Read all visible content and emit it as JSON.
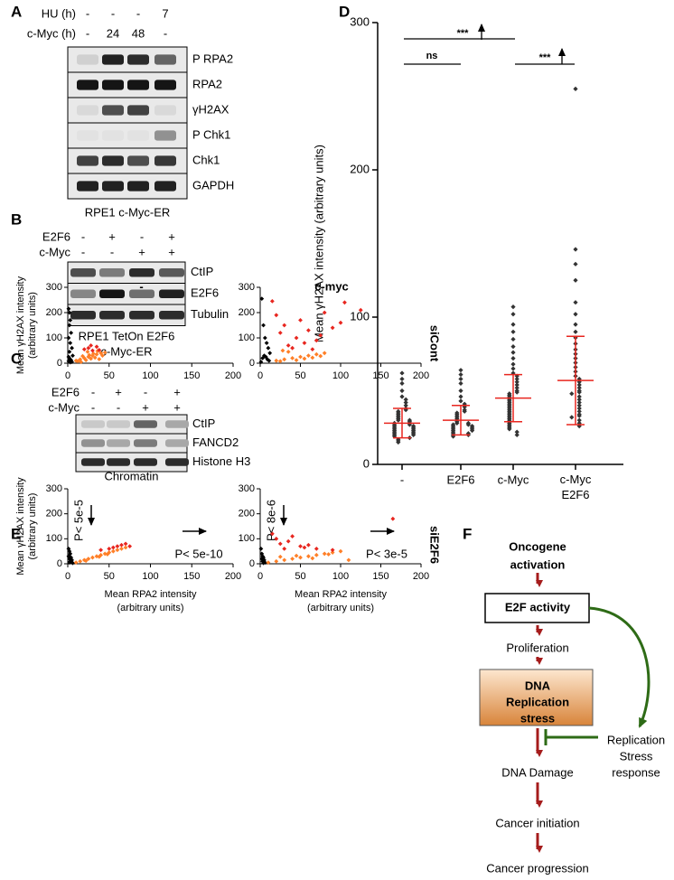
{
  "blot_a": {
    "label": "A",
    "conditions": [
      {
        "name": "HU (h)",
        "values": [
          "-",
          "-",
          "-",
          "7"
        ]
      },
      {
        "name": "c-Myc (h)",
        "values": [
          "-",
          "24",
          "48",
          "-"
        ]
      }
    ],
    "bands": [
      "P RPA2",
      "RPA2",
      "γH2AX",
      "P Chk1",
      "Chk1",
      "GAPDH"
    ],
    "caption": [
      "RPE1 c-Myc-ER"
    ]
  },
  "blot_b": {
    "label": "B",
    "conditions": [
      {
        "name": "E2F6",
        "values": [
          "-",
          "+",
          "-",
          "+"
        ]
      },
      {
        "name": "c-Myc",
        "values": [
          "-",
          "-",
          "+",
          "+"
        ]
      }
    ],
    "bands": [
      "CtIP",
      "E2F6",
      "Tubulin"
    ],
    "caption": [
      "RPE1 TetOn E2F6",
      "c-Myc-ER"
    ]
  },
  "blot_c": {
    "label": "C",
    "conditions": [
      {
        "name": "E2F6",
        "values": [
          "-",
          "+",
          "-",
          "+"
        ]
      },
      {
        "name": "c-Myc",
        "values": [
          "-",
          "-",
          "+",
          "+"
        ]
      }
    ],
    "bands": [
      "CtIP",
      "FANCD2",
      "Histone H3"
    ],
    "caption": [
      "Chromatin"
    ]
  },
  "chart_data": [
    {
      "type": "dotplot",
      "label": "D",
      "ylabel": "Mean γH2AX intensity (arbitrary units)",
      "categories": [
        "-",
        "E2F6",
        "c-Myc",
        "c-Myc E2F6"
      ],
      "values": [
        [
          62,
          58,
          55,
          50,
          46,
          44,
          42,
          40,
          38,
          37,
          36,
          35,
          34,
          33,
          32,
          31,
          30,
          30,
          29,
          28,
          28,
          27,
          27,
          26,
          26,
          25,
          25,
          24,
          24,
          23,
          23,
          22,
          22,
          21,
          21,
          20,
          20,
          19,
          18,
          17,
          16,
          15
        ],
        [
          64,
          61,
          58,
          55,
          50,
          46,
          43,
          41,
          39,
          37,
          36,
          35,
          34,
          33,
          32,
          31,
          30,
          29,
          28,
          28,
          27,
          27,
          26,
          26,
          25,
          25,
          24,
          24,
          23,
          23,
          22,
          21,
          21,
          20,
          20,
          19
        ],
        [
          107,
          102,
          95,
          90,
          85,
          80,
          76,
          72,
          68,
          65,
          62,
          60,
          58,
          56,
          54,
          52,
          50,
          49,
          48,
          47,
          46,
          45,
          44,
          43,
          42,
          41,
          40,
          39,
          38,
          37,
          36,
          35,
          34,
          33,
          32,
          31,
          30,
          29,
          28,
          27,
          26,
          25,
          24,
          22,
          20
        ],
        [
          255,
          146,
          136,
          125,
          110,
          102,
          95,
          90,
          86,
          82,
          78,
          75,
          72,
          69,
          66,
          63,
          60,
          58,
          56,
          54,
          52,
          50,
          49,
          48,
          46,
          44,
          42,
          40,
          38,
          36,
          34,
          33,
          32,
          30,
          28,
          26
        ]
      ],
      "mean": [
        28,
        30,
        45,
        57
      ],
      "sd": [
        10,
        10,
        16,
        30
      ],
      "color": "#333333",
      "stat_color": "#e8261f",
      "ylim": [
        0,
        300
      ],
      "yticks": [
        0,
        100,
        200,
        300
      ],
      "annotations": [
        "***",
        "ns",
        "***"
      ]
    },
    {
      "type": "scatter",
      "label": "E",
      "title": "-",
      "ylabel": [
        "Mean γH2AX intensity",
        "(arbitrary units)"
      ],
      "xlim": [
        0,
        200
      ],
      "xticks": [
        0,
        50,
        100,
        150,
        200
      ],
      "ylim": [
        0,
        300
      ],
      "yticks": [
        0,
        100,
        200,
        300
      ],
      "series": [
        {
          "color": "#000000",
          "x": [
            1,
            2,
            3,
            2,
            4,
            1,
            3,
            5,
            2,
            6,
            1,
            2,
            3,
            4,
            2,
            1,
            5,
            3
          ],
          "y": [
            215,
            200,
            170,
            150,
            120,
            100,
            80,
            60,
            45,
            30,
            25,
            20,
            15,
            12,
            10,
            8,
            5,
            3
          ]
        },
        {
          "color": "#ff7f27",
          "x": [
            10,
            15,
            20,
            25,
            30,
            35,
            40,
            22,
            28,
            18,
            33,
            38,
            12,
            26,
            31,
            45,
            16,
            24,
            36,
            42
          ],
          "y": [
            10,
            15,
            20,
            25,
            30,
            35,
            40,
            12,
            18,
            28,
            22,
            16,
            8,
            32,
            38,
            42,
            5,
            45,
            48,
            30
          ]
        },
        {
          "color": "#e8261f",
          "x": [
            20,
            25,
            30,
            35,
            28,
            38
          ],
          "y": [
            55,
            60,
            50,
            65,
            70,
            52
          ]
        }
      ]
    },
    {
      "type": "scatter",
      "title": "c-myc",
      "row_label": "siCont",
      "xlim": [
        0,
        200
      ],
      "xticks": [
        0,
        50,
        100,
        150,
        200
      ],
      "ylim": [
        0,
        300
      ],
      "yticks": [
        0,
        100,
        200,
        300
      ],
      "series": [
        {
          "color": "#000000",
          "x": [
            2,
            4,
            6,
            8,
            10,
            12,
            5,
            7,
            3,
            9,
            11,
            1
          ],
          "y": [
            255,
            150,
            100,
            80,
            60,
            40,
            30,
            25,
            20,
            15,
            10,
            5
          ]
        },
        {
          "color": "#ff7f27",
          "x": [
            20,
            30,
            40,
            50,
            60,
            70,
            80,
            35,
            45,
            55,
            65,
            75,
            25,
            28
          ],
          "y": [
            10,
            15,
            20,
            25,
            30,
            35,
            40,
            45,
            12,
            18,
            22,
            28,
            8,
            50
          ]
        },
        {
          "color": "#e8261f",
          "x": [
            15,
            20,
            25,
            30,
            40,
            45,
            50,
            55,
            60,
            70,
            75,
            80,
            90,
            100,
            105,
            125,
            35,
            65
          ],
          "y": [
            245,
            190,
            120,
            150,
            60,
            100,
            170,
            80,
            130,
            90,
            110,
            200,
            140,
            160,
            240,
            210,
            70,
            55
          ]
        }
      ]
    },
    {
      "type": "scatter",
      "ylabel": [
        "Mean γH2AX intensity",
        "(arbitrary units)"
      ],
      "xlabel": [
        "Mean RPA2 intensity",
        "(arbitrary units)"
      ],
      "xlim": [
        0,
        200
      ],
      "xticks": [
        0,
        50,
        100,
        150,
        200
      ],
      "ylim": [
        0,
        300
      ],
      "yticks": [
        0,
        100,
        200,
        300
      ],
      "annotations": [
        "P< 5e-5",
        "P< 5e-10"
      ],
      "series": [
        {
          "color": "#000000",
          "x": [
            1,
            2,
            3,
            1,
            4,
            2,
            5,
            3,
            2,
            6
          ],
          "y": [
            60,
            50,
            40,
            30,
            25,
            20,
            15,
            10,
            5,
            3
          ]
        },
        {
          "color": "#ff7f27",
          "x": [
            10,
            15,
            20,
            25,
            30,
            35,
            40,
            45,
            50,
            55,
            60,
            65,
            70,
            22,
            38,
            48
          ],
          "y": [
            5,
            10,
            15,
            20,
            25,
            30,
            35,
            40,
            45,
            50,
            55,
            60,
            65,
            12,
            28,
            38
          ]
        },
        {
          "color": "#e8261f",
          "x": [
            40,
            50,
            55,
            60,
            65,
            70,
            75
          ],
          "y": [
            55,
            60,
            65,
            70,
            75,
            80,
            70
          ]
        }
      ]
    },
    {
      "type": "scatter",
      "row_label": "siE2F6",
      "xlabel": [
        "Mean RPA2 intensity",
        "(arbitrary units)"
      ],
      "xlim": [
        0,
        200
      ],
      "xticks": [
        0,
        50,
        100,
        150,
        200
      ],
      "ylim": [
        0,
        300
      ],
      "yticks": [
        0,
        100,
        200,
        300
      ],
      "annotations": [
        "P< 8e-6",
        "P< 3e-5"
      ],
      "series": [
        {
          "color": "#000000",
          "x": [
            1,
            2,
            3,
            4,
            2,
            5,
            3,
            6,
            4
          ],
          "y": [
            60,
            40,
            30,
            25,
            20,
            15,
            10,
            5,
            3
          ]
        },
        {
          "color": "#ff7f27",
          "x": [
            10,
            20,
            30,
            40,
            50,
            60,
            70,
            80,
            90,
            100,
            110,
            25,
            45,
            65,
            85
          ],
          "y": [
            5,
            10,
            15,
            20,
            25,
            30,
            35,
            40,
            45,
            50,
            15,
            28,
            32,
            22,
            38
          ]
        },
        {
          "color": "#e8261f",
          "x": [
            15,
            20,
            25,
            30,
            35,
            40,
            50,
            55,
            60,
            70,
            90,
            165
          ],
          "y": [
            120,
            100,
            80,
            60,
            90,
            110,
            70,
            65,
            75,
            60,
            55,
            180
          ]
        }
      ]
    }
  ],
  "flow": {
    "label": "F",
    "steps": [
      {
        "lines": [
          "Oncogene",
          "activation"
        ]
      },
      {
        "lines": [
          "E2F activity"
        ]
      },
      {
        "lines": [
          "Proliferation"
        ]
      },
      {
        "lines": [
          "DNA",
          "Replication",
          "stress"
        ]
      },
      {
        "lines": [
          "DNA Damage"
        ]
      },
      {
        "lines": [
          "Cancer initiation"
        ]
      },
      {
        "lines": [
          "Cancer progression"
        ]
      }
    ],
    "feedback": {
      "lines": [
        "Replication",
        "Stress",
        "response"
      ]
    }
  }
}
